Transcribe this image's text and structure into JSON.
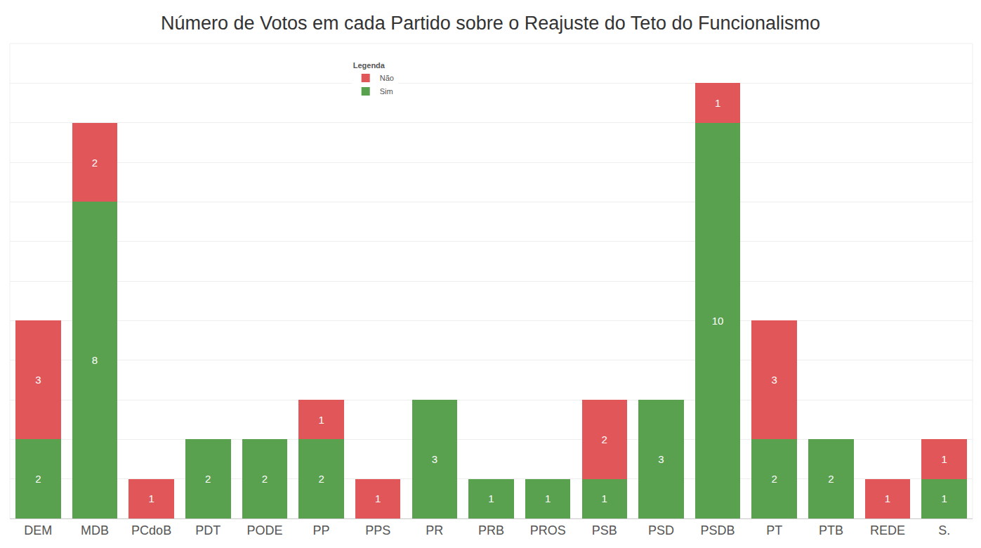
{
  "chart_data": {
    "type": "bar",
    "title": "Número de Votos em cada Partido sobre o Reajuste do Teto do Funcionalismo",
    "categories": [
      "DEM",
      "MDB",
      "PCdoB",
      "PDT",
      "PODE",
      "PP",
      "PPS",
      "PR",
      "PRB",
      "PROS",
      "PSB",
      "PSD",
      "PSDB",
      "PT",
      "PTB",
      "REDE",
      "S."
    ],
    "series": [
      {
        "name": "Sim",
        "color": "#59a14f",
        "values": [
          2,
          8,
          null,
          2,
          2,
          2,
          null,
          3,
          1,
          1,
          1,
          3,
          10,
          2,
          2,
          null,
          1
        ]
      },
      {
        "name": "Não",
        "color": "#e15759",
        "values": [
          3,
          2,
          1,
          null,
          null,
          1,
          1,
          null,
          null,
          null,
          2,
          null,
          1,
          3,
          null,
          1,
          1
        ]
      }
    ],
    "legend_title": "Legenda",
    "legend": "top",
    "stacked": true,
    "data_labels": true,
    "tick_labels": "x",
    "grid": true,
    "ylim": [
      0,
      12
    ],
    "yticks": [
      0,
      1,
      2,
      3,
      4,
      5,
      6,
      7,
      8,
      9,
      10,
      11,
      12
    ]
  }
}
